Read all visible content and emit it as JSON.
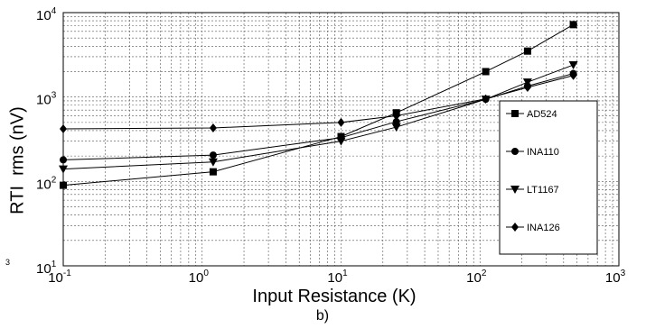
{
  "chart_data": {
    "type": "line",
    "x_scale": "log",
    "y_scale": "log",
    "xlabel": "Input Resistance (K)",
    "ylabel": "RTI  rms (nV)",
    "caption": "b)",
    "stray_label": "3",
    "xlim": [
      0.1,
      1000
    ],
    "ylim": [
      10,
      10000
    ],
    "x_ticks": [
      {
        "base": "10",
        "exp": "-1"
      },
      {
        "base": "10",
        "exp": "0"
      },
      {
        "base": "10",
        "exp": "1"
      },
      {
        "base": "10",
        "exp": "2"
      },
      {
        "base": "10",
        "exp": "3"
      }
    ],
    "y_ticks": [
      {
        "base": "10",
        "exp": "1"
      },
      {
        "base": "10",
        "exp": "2"
      },
      {
        "base": "10",
        "exp": "3"
      },
      {
        "base": "10",
        "exp": "4"
      }
    ],
    "grid": true,
    "legend_position": "right",
    "series": [
      {
        "name": "AD524",
        "marker": "square",
        "x": [
          0.1,
          1.2,
          10,
          25,
          110,
          220,
          470
        ],
        "y": [
          90,
          130,
          340,
          650,
          2000,
          3500,
          7200
        ]
      },
      {
        "name": "INA110",
        "marker": "circle",
        "x": [
          0.1,
          1.2,
          10,
          25,
          110,
          220,
          470
        ],
        "y": [
          180,
          205,
          330,
          510,
          940,
          1350,
          1900
        ]
      },
      {
        "name": "LT1167",
        "marker": "triangle-down",
        "x": [
          0.1,
          1.2,
          10,
          25,
          110,
          220,
          470
        ],
        "y": [
          140,
          170,
          300,
          440,
          940,
          1500,
          2400
        ]
      },
      {
        "name": "INA126",
        "marker": "diamond",
        "x": [
          0.1,
          1.2,
          10,
          25,
          110,
          220,
          470
        ],
        "y": [
          420,
          430,
          500,
          600,
          950,
          1300,
          1800
        ]
      }
    ]
  }
}
